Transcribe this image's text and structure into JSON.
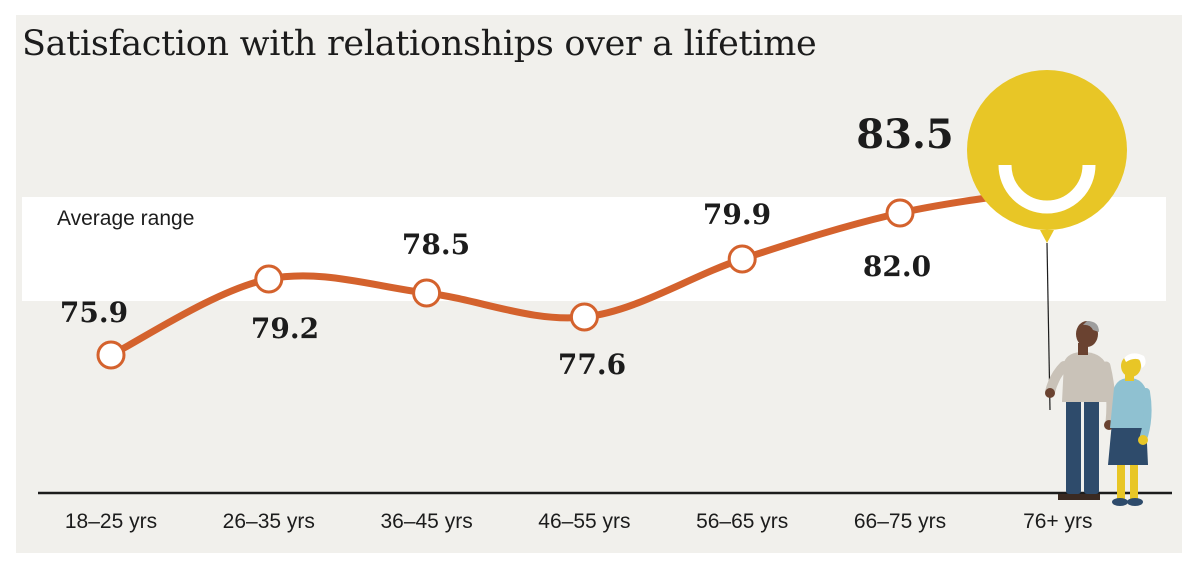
{
  "chart_data": {
    "type": "line",
    "title": "Satisfaction with relationships over a lifetime",
    "categories": [
      "18–25 yrs",
      "26–35 yrs",
      "36–45 yrs",
      "46–55 yrs",
      "56–65 yrs",
      "66–75 yrs",
      "76+ yrs"
    ],
    "values": [
      75.9,
      79.2,
      78.5,
      77.6,
      79.9,
      82.0,
      83.5
    ],
    "value_labels": [
      "75.9",
      "79.2",
      "78.5",
      "77.6",
      "79.9",
      "82.0",
      "83.5"
    ],
    "band_label": "Average range",
    "band_range": [
      77.4,
      81.5
    ],
    "ylim": [
      71,
      87
    ],
    "grid": false,
    "legend": "none",
    "colors": {
      "line": "#d4622d",
      "background": "#f1f0ec",
      "band": "#ffffff",
      "balloon": "#e8c626",
      "text": "#1c1c1c"
    },
    "decorations": [
      "smiling-balloon-icon",
      "elderly-couple-illustration"
    ]
  }
}
